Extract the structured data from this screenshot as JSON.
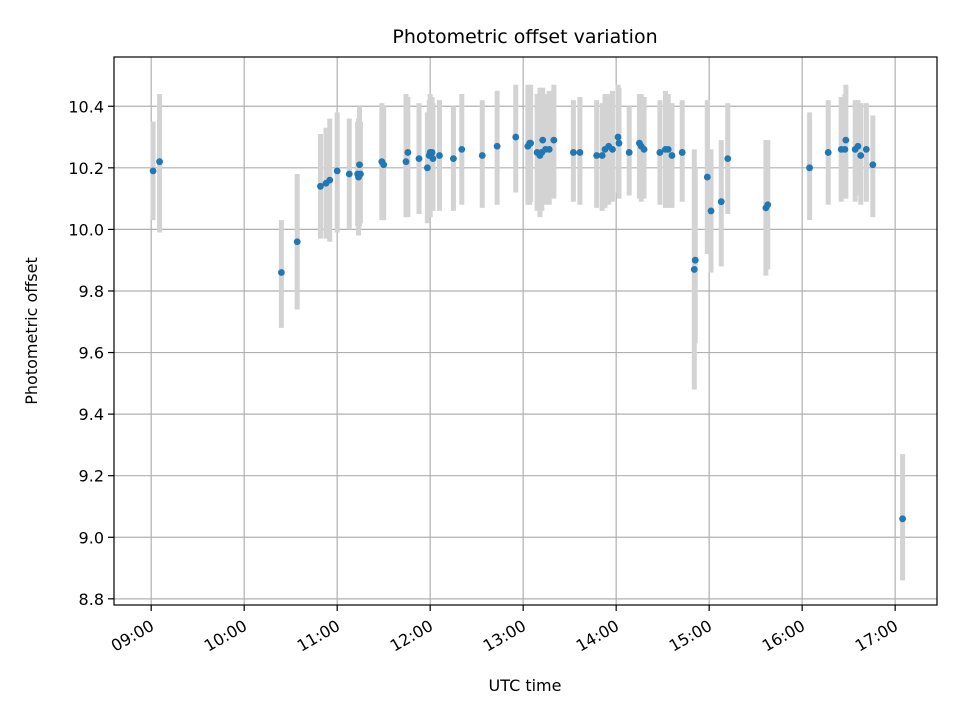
{
  "chart_data": {
    "type": "scatter",
    "title": "Photometric offset variation",
    "xlabel": "UTC time",
    "ylabel": "Photometric offset",
    "x_unit": "hours UTC",
    "xlim": [
      8.6,
      17.45
    ],
    "ylim": [
      8.78,
      10.56
    ],
    "xticks": [
      9,
      10,
      11,
      12,
      13,
      14,
      15,
      16,
      17
    ],
    "xtick_labels": [
      "09:00",
      "10:00",
      "11:00",
      "12:00",
      "13:00",
      "14:00",
      "15:00",
      "16:00",
      "17:00"
    ],
    "yticks": [
      8.8,
      9.0,
      9.2,
      9.4,
      9.6,
      9.8,
      10.0,
      10.2,
      10.4
    ],
    "ytick_labels": [
      "8.8",
      "9.0",
      "9.2",
      "9.4",
      "9.6",
      "9.8",
      "10.0",
      "10.2",
      "10.4"
    ],
    "grid": true,
    "point_color": "#1f77b4",
    "errorbar_color": "#d3d3d3",
    "series": [
      {
        "x": [
          9.02,
          9.09,
          10.4,
          10.57,
          10.82,
          10.88,
          10.92,
          11.0,
          11.13,
          11.22,
          11.23,
          11.24,
          11.25,
          11.48,
          11.5,
          11.74,
          11.76,
          11.88,
          11.97,
          11.99,
          12.0,
          12.03,
          12.02,
          12.1,
          12.25,
          12.34,
          12.56,
          12.72,
          12.92,
          13.05,
          13.07,
          13.08,
          13.15,
          13.18,
          13.2,
          13.21,
          13.24,
          13.28,
          13.33,
          13.54,
          13.61,
          13.79,
          13.85,
          13.88,
          13.92,
          13.96,
          14.02,
          14.03,
          14.14,
          14.25,
          14.27,
          14.3,
          14.47,
          14.53,
          14.56,
          14.6,
          14.71,
          14.84,
          14.85,
          14.98,
          15.02,
          15.13,
          15.2,
          15.61,
          15.63,
          16.08,
          16.28,
          16.42,
          16.47,
          16.46,
          16.57,
          16.6,
          16.63,
          16.69,
          16.76,
          17.08
        ],
        "y": [
          10.19,
          10.22,
          9.86,
          9.96,
          10.14,
          10.15,
          10.16,
          10.19,
          10.18,
          10.18,
          10.17,
          10.21,
          10.18,
          10.22,
          10.21,
          10.22,
          10.25,
          10.23,
          10.2,
          10.24,
          10.25,
          10.23,
          10.25,
          10.24,
          10.23,
          10.26,
          10.24,
          10.27,
          10.3,
          10.27,
          10.28,
          10.28,
          10.25,
          10.24,
          10.25,
          10.29,
          10.26,
          10.26,
          10.29,
          10.25,
          10.25,
          10.24,
          10.24,
          10.26,
          10.27,
          10.26,
          10.3,
          10.28,
          10.25,
          10.28,
          10.27,
          10.26,
          10.25,
          10.26,
          10.26,
          10.24,
          10.25,
          9.87,
          9.9,
          10.17,
          10.06,
          10.09,
          10.23,
          10.07,
          10.08,
          10.2,
          10.25,
          10.26,
          10.29,
          10.26,
          10.26,
          10.27,
          10.24,
          10.26,
          10.21,
          9.06
        ],
        "yerr_low": [
          10.03,
          9.99,
          9.68,
          9.74,
          9.97,
          9.97,
          9.96,
          9.99,
          10.0,
          10.01,
          9.98,
          10.01,
          10.02,
          10.03,
          10.03,
          10.04,
          10.04,
          10.05,
          10.02,
          10.04,
          10.04,
          10.06,
          10.06,
          10.06,
          10.06,
          10.08,
          10.07,
          10.08,
          10.12,
          10.08,
          10.08,
          10.09,
          10.06,
          10.04,
          10.06,
          10.1,
          10.08,
          10.08,
          10.1,
          10.09,
          10.08,
          10.07,
          10.06,
          10.07,
          10.08,
          10.09,
          10.12,
          10.1,
          10.11,
          10.1,
          10.09,
          10.1,
          10.08,
          10.07,
          10.07,
          10.07,
          10.09,
          9.48,
          9.63,
          9.92,
          9.86,
          9.88,
          10.05,
          9.85,
          9.87,
          10.03,
          10.08,
          10.09,
          10.1,
          10.1,
          10.09,
          10.11,
          10.08,
          10.09,
          10.04,
          8.86
        ],
        "yerr_high": [
          10.35,
          10.44,
          10.03,
          10.18,
          10.31,
          10.33,
          10.36,
          10.38,
          10.36,
          10.35,
          10.36,
          10.4,
          10.35,
          10.41,
          10.4,
          10.44,
          10.43,
          10.41,
          10.38,
          10.42,
          10.44,
          10.41,
          10.43,
          10.42,
          10.4,
          10.44,
          10.42,
          10.45,
          10.47,
          10.47,
          10.46,
          10.47,
          10.44,
          10.46,
          10.43,
          10.46,
          10.44,
          10.45,
          10.47,
          10.42,
          10.43,
          10.42,
          10.41,
          10.44,
          10.44,
          10.45,
          10.47,
          10.46,
          10.4,
          10.44,
          10.44,
          10.43,
          10.42,
          10.45,
          10.44,
          10.41,
          10.42,
          10.26,
          10.2,
          10.42,
          10.26,
          10.29,
          10.41,
          10.29,
          10.29,
          10.38,
          10.42,
          10.43,
          10.47,
          10.44,
          10.42,
          10.42,
          10.41,
          10.41,
          10.37,
          9.27
        ]
      }
    ]
  }
}
